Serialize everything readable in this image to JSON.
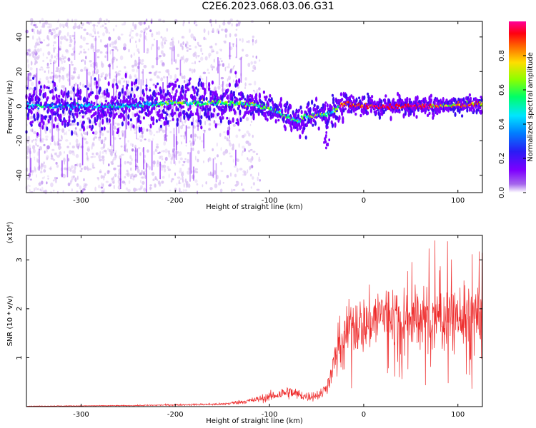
{
  "title": "C2E6.2023.068.03.06.G31",
  "colors": {
    "snr_line": "#ee2a2a",
    "axis": "#000000",
    "background": "#ffffff",
    "colormap": [
      "#d9c0f3",
      "#a566ec",
      "#7f00ff",
      "#3a0cf0",
      "#0078ff",
      "#00e6ff",
      "#00ff66",
      "#8cff00",
      "#ffde00",
      "#ff6000",
      "#ff0010",
      "#ff0099"
    ]
  },
  "chart_data": [
    {
      "type": "heatmap",
      "title": "C2E6.2023.068.03.06.G31",
      "xlabel": "Height of straight line (km)",
      "ylabel": "Frequency (Hz)",
      "xlim": [
        -358,
        126
      ],
      "ylim": [
        -50,
        49
      ],
      "x_ticks": [
        -300,
        -200,
        -100,
        0,
        100
      ],
      "y_ticks": [
        -40,
        -20,
        0,
        20,
        40
      ],
      "grid": false,
      "colorbar": {
        "label": "Normalized spectral amplitude",
        "range": [
          0.0,
          1.0
        ],
        "ticks": [
          "0.0",
          "0.2",
          "0.4",
          "0.6",
          "0.8"
        ]
      },
      "ridge_center_hz": [
        [
          -358,
          0
        ],
        [
          -300,
          0
        ],
        [
          -250,
          0
        ],
        [
          -200,
          2
        ],
        [
          -150,
          2
        ],
        [
          -120,
          1
        ],
        [
          -100,
          -1
        ],
        [
          -85,
          -5
        ],
        [
          -70,
          -9
        ],
        [
          -60,
          -6
        ],
        [
          -50,
          -5
        ],
        [
          -40,
          -5
        ],
        [
          -30,
          -2
        ],
        [
          -25,
          0
        ],
        [
          -18,
          2
        ],
        [
          -12,
          0
        ],
        [
          -5,
          1
        ],
        [
          0,
          0
        ],
        [
          20,
          0
        ],
        [
          50,
          0
        ],
        [
          80,
          0
        ],
        [
          100,
          1
        ],
        [
          126,
          1
        ]
      ],
      "noise_region_x": [
        -358,
        -130
      ]
    },
    {
      "type": "line",
      "xlabel": "Height of straight line (km)",
      "ylabel": "SNR (10 * v/v)",
      "y_multiplier": "(x10⁴)",
      "xlim": [
        -358,
        126
      ],
      "ylim": [
        0,
        3.5
      ],
      "x_ticks": [
        -300,
        -200,
        -100,
        0,
        100
      ],
      "y_ticks": [
        1,
        2,
        3
      ],
      "grid": false,
      "series": [
        {
          "values_envelope": [
            [
              -358,
              0.01
            ],
            [
              -250,
              0.02
            ],
            [
              -150,
              0.05
            ],
            [
              -120,
              0.12
            ],
            [
              -100,
              0.2
            ],
            [
              -80,
              0.3
            ],
            [
              -60,
              0.2
            ],
            [
              -45,
              0.25
            ],
            [
              -35,
              0.6
            ],
            [
              -28,
              1.2
            ],
            [
              -20,
              1.5
            ],
            [
              -10,
              1.7
            ],
            [
              0,
              1.65
            ],
            [
              20,
              1.9
            ],
            [
              40,
              1.85
            ],
            [
              60,
              1.8
            ],
            [
              80,
              1.8
            ],
            [
              100,
              1.85
            ],
            [
              126,
              1.8
            ]
          ]
        }
      ]
    }
  ]
}
